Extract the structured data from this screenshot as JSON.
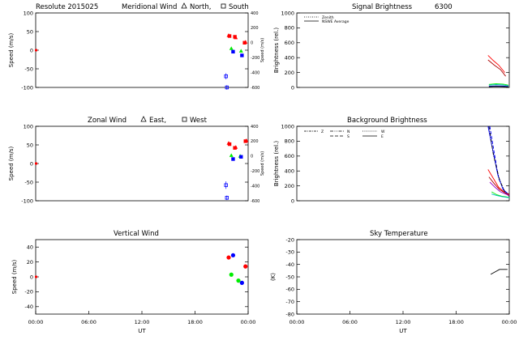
{
  "colors": {
    "red": "#ff0000",
    "green": "#00ee00",
    "blue": "#0000ff",
    "purple": "#9900cc",
    "cyan": "#00bbbb",
    "black": "#000000",
    "darkred": "#aa0000"
  },
  "chart_data": [
    {
      "type": "scatter",
      "title": "Resolute  2015025",
      "subtitle": "Meridional Wind",
      "legend": {
        "triangle": "North,",
        "square": "South"
      },
      "xlabel": "",
      "ylabel": "Speed (m/s)",
      "y2label": "Speed (m/s)",
      "xlim": [
        0,
        24
      ],
      "ylim": [
        -100,
        100
      ],
      "y2lim": [
        -600,
        400
      ],
      "yticks": [
        -100,
        -50,
        0,
        50,
        100
      ],
      "y2ticks": [
        -600,
        -400,
        -200,
        0,
        200,
        400
      ],
      "zero_marker": {
        "x": 0.05,
        "y": 0,
        "color": "red"
      },
      "series": [
        {
          "name": "North",
          "marker": "triangle",
          "color": "red",
          "points": [
            [
              21.8,
              40
            ],
            [
              22.6,
              34
            ],
            [
              23.7,
              22
            ]
          ]
        },
        {
          "name": "South",
          "marker": "square",
          "color": "red",
          "points": [
            [
              21.9,
              38
            ],
            [
              22.5,
              36
            ],
            [
              23.6,
              20
            ]
          ]
        },
        {
          "name": "North",
          "marker": "triangle",
          "color": "green",
          "points": [
            [
              22.1,
              5
            ],
            [
              23.2,
              -2
            ]
          ]
        },
        {
          "name": "South",
          "marker": "square",
          "color": "blue",
          "points": [
            [
              22.3,
              -4
            ],
            [
              23.3,
              -14
            ]
          ]
        },
        {
          "name": "Secondary axis",
          "marker": "square",
          "color": "blue",
          "errorbar": true,
          "points": [
            [
              21.5,
              -70,
              8
            ],
            [
              21.6,
              -100,
              6
            ]
          ]
        }
      ]
    },
    {
      "type": "scatter",
      "title": "Zonal Wind",
      "legend": {
        "triangle": "East,",
        "square": "West"
      },
      "xlabel": "",
      "ylabel": "Speed (m/s)",
      "y2label": "Speed (m/s)",
      "xlim": [
        0,
        24
      ],
      "ylim": [
        -100,
        100
      ],
      "y2lim": [
        -600,
        400
      ],
      "yticks": [
        -100,
        -50,
        0,
        50,
        100
      ],
      "y2ticks": [
        -600,
        -400,
        -200,
        0,
        200,
        400
      ],
      "zero_marker": {
        "x": 0.05,
        "y": 0,
        "color": "red"
      },
      "series": [
        {
          "name": "East",
          "marker": "triangle",
          "color": "red",
          "points": [
            [
              21.8,
              55
            ],
            [
              22.6,
              44
            ],
            [
              23.8,
              62
            ]
          ]
        },
        {
          "name": "West",
          "marker": "square",
          "color": "red",
          "points": [
            [
              21.9,
              52
            ],
            [
              22.5,
              42
            ],
            [
              23.7,
              60
            ]
          ]
        },
        {
          "name": "East",
          "marker": "triangle",
          "color": "green",
          "points": [
            [
              22.1,
              22
            ],
            [
              23.1,
              20
            ]
          ]
        },
        {
          "name": "West",
          "marker": "square",
          "color": "blue",
          "points": [
            [
              22.3,
              12
            ],
            [
              23.2,
              18
            ]
          ]
        },
        {
          "name": "Secondary axis",
          "marker": "square",
          "color": "blue",
          "errorbar": true,
          "points": [
            [
              21.5,
              -58,
              10
            ],
            [
              21.6,
              -92,
              6
            ]
          ]
        }
      ]
    },
    {
      "type": "scatter",
      "title": "Vertical Wind",
      "xlabel": "UT",
      "ylabel": "Speed (m/s)",
      "xlim": [
        0,
        24
      ],
      "ylim": [
        -50,
        50
      ],
      "yticks": [
        -40,
        -20,
        0,
        20,
        40
      ],
      "xticks": [
        "00:00",
        "06:00",
        "12:00",
        "18:00",
        "00:00"
      ],
      "zero_marker": {
        "x": 0.05,
        "y": 0,
        "color": "red"
      },
      "series": [
        {
          "name": "Vertical",
          "marker": "circle",
          "color": "red",
          "points": [
            [
              21.8,
              26
            ],
            [
              23.7,
              14
            ]
          ]
        },
        {
          "name": "Vertical",
          "marker": "circle",
          "color": "blue",
          "points": [
            [
              22.3,
              29
            ],
            [
              23.3,
              -8
            ]
          ]
        },
        {
          "name": "Vertical",
          "marker": "circle",
          "color": "green",
          "points": [
            [
              22.1,
              3
            ],
            [
              22.9,
              -5
            ]
          ]
        }
      ]
    },
    {
      "type": "line",
      "title": "Signal Brightness",
      "subtitle": "6300",
      "xlabel": "",
      "ylabel": "Brightness (rel.)",
      "xlim": [
        0,
        24
      ],
      "ylim": [
        0,
        1000
      ],
      "yticks": [
        0,
        200,
        400,
        600,
        800,
        1000
      ],
      "legend": [
        "Zenith",
        "NSWE Average"
      ],
      "series": [
        {
          "name": "red-1",
          "color": "red",
          "style": "solid",
          "x": [
            21.6,
            22.2,
            22.8,
            23.5
          ],
          "y": [
            430,
            360,
            300,
            200
          ]
        },
        {
          "name": "red-2",
          "color": "darkred",
          "style": "solid",
          "x": [
            21.6,
            22.3,
            23.0,
            23.6
          ],
          "y": [
            370,
            300,
            240,
            150
          ]
        },
        {
          "name": "green",
          "color": "green",
          "style": "solid",
          "x": [
            21.7,
            22.5,
            23.3,
            23.9
          ],
          "y": [
            40,
            50,
            45,
            30
          ]
        },
        {
          "name": "cyan",
          "color": "cyan",
          "style": "solid",
          "x": [
            21.7,
            22.5,
            23.3,
            23.9
          ],
          "y": [
            30,
            38,
            34,
            22
          ]
        },
        {
          "name": "blue",
          "color": "blue",
          "style": "solid",
          "x": [
            21.7,
            22.5,
            23.3,
            23.9
          ],
          "y": [
            15,
            20,
            18,
            12
          ]
        },
        {
          "name": "black",
          "color": "black",
          "style": "solid",
          "x": [
            21.7,
            22.5,
            23.3,
            23.9
          ],
          "y": [
            10,
            14,
            12,
            8
          ]
        }
      ]
    },
    {
      "type": "line",
      "title": "Background Brightness",
      "xlabel": "",
      "ylabel": "Brightness (rel.)",
      "xlim": [
        0,
        24
      ],
      "ylim": [
        0,
        1000
      ],
      "yticks": [
        0,
        200,
        400,
        600,
        800,
        1000
      ],
      "legend": [
        "Z",
        "N",
        "W",
        "S",
        "E"
      ],
      "series": [
        {
          "name": "blue-1",
          "color": "blue",
          "style": "solid",
          "x": [
            21.6,
            22.1,
            22.7,
            23.3,
            24.0
          ],
          "y": [
            1000,
            700,
            350,
            150,
            80
          ]
        },
        {
          "name": "blue-2",
          "color": "blue",
          "style": "dashed",
          "x": [
            21.8,
            22.3,
            22.8,
            23.4,
            24.0
          ],
          "y": [
            1000,
            650,
            300,
            140,
            70
          ]
        },
        {
          "name": "black",
          "color": "black",
          "style": "dashdot",
          "x": [
            21.7,
            22.2,
            22.9,
            23.5,
            24.0
          ],
          "y": [
            1000,
            620,
            280,
            120,
            60
          ]
        },
        {
          "name": "red-1",
          "color": "red",
          "style": "solid",
          "x": [
            21.6,
            22.2,
            22.8,
            23.5,
            24.0
          ],
          "y": [
            420,
            300,
            180,
            110,
            80
          ]
        },
        {
          "name": "red-2",
          "color": "darkred",
          "style": "solid",
          "x": [
            21.7,
            22.3,
            22.9,
            23.6,
            24.0
          ],
          "y": [
            320,
            230,
            150,
            100,
            90
          ]
        },
        {
          "name": "purple",
          "color": "purple",
          "style": "solid",
          "x": [
            21.8,
            22.4,
            23.0,
            23.6,
            24.0
          ],
          "y": [
            250,
            180,
            120,
            90,
            70
          ]
        },
        {
          "name": "green",
          "color": "green",
          "style": "solid",
          "x": [
            22.0,
            22.6,
            23.2,
            23.8,
            24.0
          ],
          "y": [
            120,
            80,
            60,
            50,
            45
          ]
        },
        {
          "name": "cyan",
          "color": "cyan",
          "style": "solid",
          "x": [
            22.0,
            22.6,
            23.2,
            23.8,
            24.0
          ],
          "y": [
            90,
            70,
            55,
            45,
            40
          ]
        }
      ]
    },
    {
      "type": "line",
      "title": "Sky Temperature",
      "xlabel": "UT",
      "ylabel": "(K)",
      "xlim": [
        0,
        24
      ],
      "ylim": [
        -80,
        -20
      ],
      "yticks": [
        -80,
        -70,
        -60,
        -50,
        -40,
        -30,
        -20
      ],
      "xticks": [
        "00:00",
        "06:00",
        "12:00",
        "18:00",
        "00:00"
      ],
      "series": [
        {
          "name": "sky",
          "color": "black",
          "style": "solid",
          "x": [
            21.9,
            22.4,
            22.9,
            23.8
          ],
          "y": [
            -48,
            -46,
            -44,
            -44
          ]
        }
      ]
    }
  ]
}
